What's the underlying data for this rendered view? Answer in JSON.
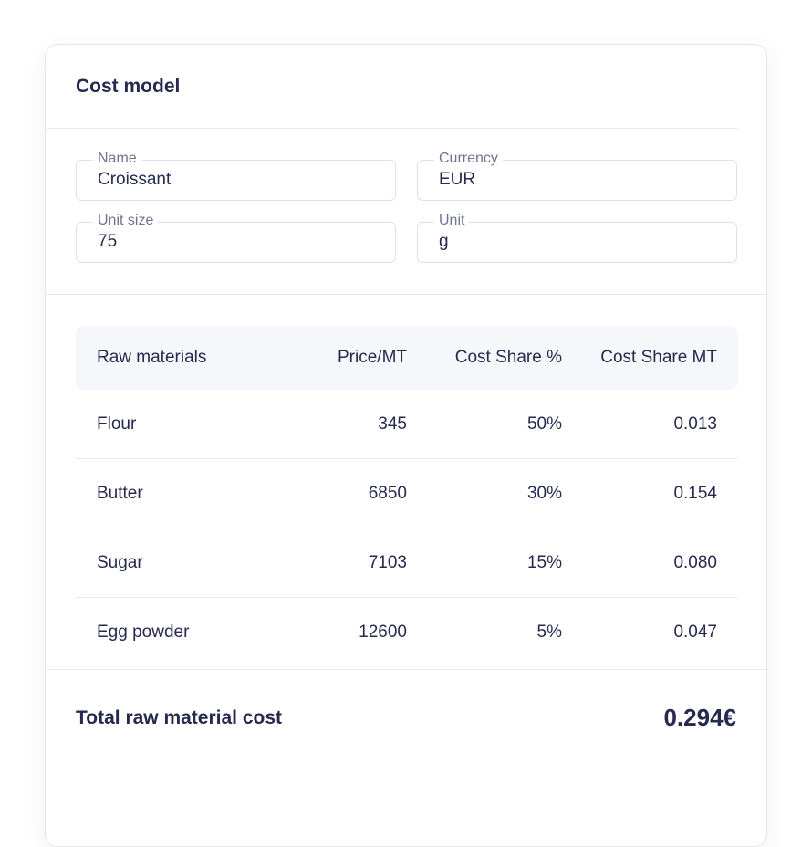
{
  "card": {
    "title": "Cost model"
  },
  "fields": {
    "name": {
      "label": "Name",
      "value": "Croissant"
    },
    "currency": {
      "label": "Currency",
      "value": "EUR"
    },
    "unit_size": {
      "label": "Unit size",
      "value": "75"
    },
    "unit": {
      "label": "Unit",
      "value": "g"
    }
  },
  "table": {
    "headers": [
      "Raw materials",
      "Price/MT",
      "Cost Share %",
      "Cost Share MT"
    ],
    "rows": [
      [
        "Flour",
        "345",
        "50%",
        "0.013"
      ],
      [
        "Butter",
        "6850",
        "30%",
        "0.154"
      ],
      [
        "Sugar",
        "7103",
        "15%",
        "0.080"
      ],
      [
        "Egg powder",
        "12600",
        "5%",
        "0.047"
      ]
    ]
  },
  "total": {
    "label": "Total raw material cost",
    "value": "0.294€"
  }
}
